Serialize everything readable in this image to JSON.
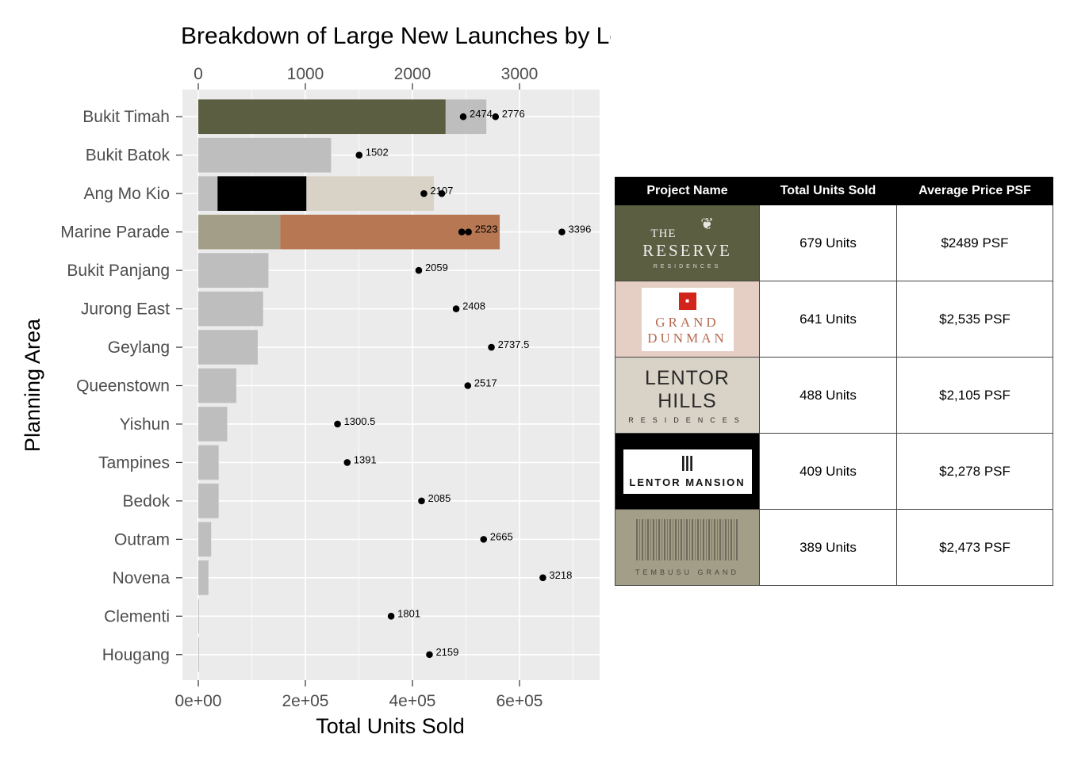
{
  "chart_data": {
    "type": "bar",
    "title": "Breakdown of Large New Launches by Location",
    "xlabel": "Total Units Sold",
    "ylabel": "Planning Area",
    "x_bottom_ticks": [
      "0e+00",
      "2e+05",
      "4e+05",
      "6e+05"
    ],
    "x_bottom_tick_values": [
      0,
      200000,
      400000,
      600000
    ],
    "x_bottom_range": [
      0,
      740000
    ],
    "x_top_ticks": [
      "0",
      "1000",
      "2000",
      "3000"
    ],
    "x_top_tick_values": [
      0,
      1000,
      2000,
      3000
    ],
    "x_top_range": [
      0,
      3700
    ],
    "categories": [
      "Bukit Timah",
      "Bukit Batok",
      "Ang Mo Kio",
      "Marine Parade",
      "Bukit Panjang",
      "Jurong East",
      "Geylang",
      "Queenstown",
      "Yishun",
      "Tampines",
      "Bedok",
      "Outram",
      "Novena",
      "Clementi",
      "Hougang"
    ],
    "bars": [
      {
        "category": "Bukit Timah",
        "segments": [
          {
            "start": 0,
            "end": 462000,
            "color": "#5b5e40"
          },
          {
            "start": 462000,
            "end": 538000,
            "color": "#bebebe"
          }
        ]
      },
      {
        "category": "Bukit Batok",
        "segments": [
          {
            "start": 0,
            "end": 248000,
            "color": "#bebebe"
          }
        ]
      },
      {
        "category": "Ang Mo Kio",
        "segments": [
          {
            "start": 0,
            "end": 36000,
            "color": "#bebebe"
          },
          {
            "start": 36000,
            "end": 202000,
            "color": "#000000"
          },
          {
            "start": 202000,
            "end": 440000,
            "color": "#d9d3c7"
          }
        ]
      },
      {
        "category": "Marine Parade",
        "segments": [
          {
            "start": 0,
            "end": 153000,
            "color": "#a39e87"
          },
          {
            "start": 153000,
            "end": 563000,
            "color": "#b67752"
          }
        ]
      },
      {
        "category": "Bukit Panjang",
        "segments": [
          {
            "start": 0,
            "end": 131000,
            "color": "#bebebe"
          }
        ]
      },
      {
        "category": "Jurong East",
        "segments": [
          {
            "start": 0,
            "end": 121000,
            "color": "#bebebe"
          }
        ]
      },
      {
        "category": "Geylang",
        "segments": [
          {
            "start": 0,
            "end": 111000,
            "color": "#bebebe"
          }
        ]
      },
      {
        "category": "Queenstown",
        "segments": [
          {
            "start": 0,
            "end": 71000,
            "color": "#bebebe"
          }
        ]
      },
      {
        "category": "Yishun",
        "segments": [
          {
            "start": 0,
            "end": 54000,
            "color": "#bebebe"
          }
        ]
      },
      {
        "category": "Tampines",
        "segments": [
          {
            "start": 0,
            "end": 38000,
            "color": "#bebebe"
          }
        ]
      },
      {
        "category": "Bedok",
        "segments": [
          {
            "start": 0,
            "end": 38000,
            "color": "#bebebe"
          }
        ]
      },
      {
        "category": "Outram",
        "segments": [
          {
            "start": 0,
            "end": 24000,
            "color": "#bebebe"
          }
        ]
      },
      {
        "category": "Novena",
        "segments": [
          {
            "start": 0,
            "end": 19000,
            "color": "#bebebe"
          }
        ]
      },
      {
        "category": "Clementi",
        "segments": [
          {
            "start": 0,
            "end": 1000,
            "color": "#bebebe"
          }
        ]
      },
      {
        "category": "Hougang",
        "segments": [
          {
            "start": 0,
            "end": 1000,
            "color": "#bebebe"
          }
        ]
      }
    ],
    "price_points": [
      {
        "category": "Bukit Timah",
        "value": 2474,
        "label": "2474"
      },
      {
        "category": "Bukit Timah",
        "value": 2776,
        "label": "2776"
      },
      {
        "category": "Bukit Batok",
        "value": 1502,
        "label": "1502"
      },
      {
        "category": "Ang Mo Kio",
        "value": 2107,
        "label": "2107"
      },
      {
        "category": "Ang Mo Kio",
        "value": 2274,
        "label": ""
      },
      {
        "category": "Marine Parade",
        "value": 2461,
        "label": ""
      },
      {
        "category": "Marine Parade",
        "value": 2523,
        "label": "2523"
      },
      {
        "category": "Marine Parade",
        "value": 3396,
        "label": "3396"
      },
      {
        "category": "Bukit Panjang",
        "value": 2059,
        "label": "2059"
      },
      {
        "category": "Jurong East",
        "value": 2408,
        "label": "2408"
      },
      {
        "category": "Geylang",
        "value": 2737.5,
        "label": "2737.5"
      },
      {
        "category": "Queenstown",
        "value": 2517,
        "label": "2517"
      },
      {
        "category": "Yishun",
        "value": 1300.5,
        "label": "1300.5"
      },
      {
        "category": "Tampines",
        "value": 1391,
        "label": "1391"
      },
      {
        "category": "Bedok",
        "value": 2085,
        "label": "2085"
      },
      {
        "category": "Outram",
        "value": 2665,
        "label": "2665"
      },
      {
        "category": "Novena",
        "value": 3218,
        "label": "3218"
      },
      {
        "category": "Clementi",
        "value": 1801,
        "label": "1801"
      },
      {
        "category": "Hougang",
        "value": 2159,
        "label": "2159"
      }
    ],
    "grid": true,
    "panel_background": "#ebebeb"
  },
  "table": {
    "headers": [
      "Project Name",
      "Total Units Sold",
      "Average Price PSF"
    ],
    "rows": [
      {
        "logo": "the-reserve-residences-logo",
        "logo_bg": "#5b5e40",
        "logo_text": [
          "THE",
          "RESERVE",
          "RESIDENCES"
        ],
        "units": "679 Units",
        "price": "$2489 PSF"
      },
      {
        "logo": "grand-dunman-logo",
        "logo_bg": "#e5cfc5",
        "logo_text": [
          "GRAND",
          "DUNMAN"
        ],
        "units": "641 Units",
        "price": "$2,535 PSF"
      },
      {
        "logo": "lentor-hills-residences-logo",
        "logo_bg": "#d9d3c7",
        "logo_text": [
          "LENTOR HILLS",
          "RESIDENCES"
        ],
        "units": "488 Units",
        "price": "$2,105 PSF"
      },
      {
        "logo": "lentor-mansion-logo",
        "logo_bg": "#000000",
        "logo_text": [
          "LENTOR MANSION"
        ],
        "units": "409 Units",
        "price": "$2,278 PSF"
      },
      {
        "logo": "tembusu-grand-logo",
        "logo_bg": "#a39e87",
        "logo_text": [
          "TEMBUSU GRAND"
        ],
        "units": "389 Units",
        "price": "$2,473 PSF"
      }
    ]
  }
}
